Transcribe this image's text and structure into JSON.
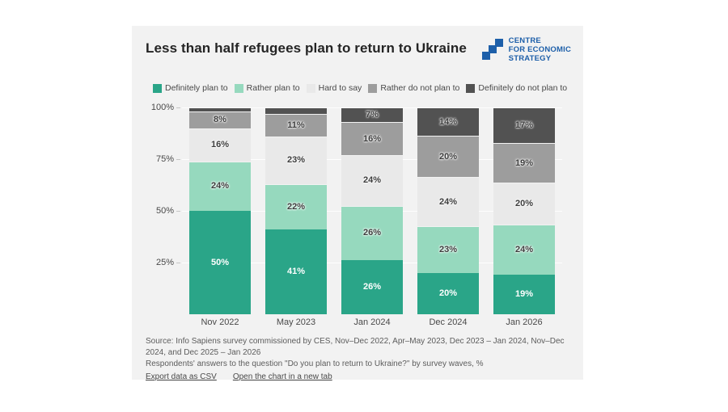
{
  "header": {
    "title": "Less than half refugees plan to return to Ukraine",
    "logo_lines": [
      "Centre",
      "For Economic",
      "Strategy"
    ],
    "logo_color": "#1d5fa9"
  },
  "chart_data": {
    "type": "bar",
    "stacked": true,
    "title": "Less than half refugees plan to return to Ukraine",
    "categories": [
      "Nov 2022",
      "May 2023",
      "Jan 2024",
      "Dec 2024",
      "Jan 2026"
    ],
    "series": [
      {
        "name": "Definitely plan to",
        "color": "#2aa588",
        "label_style": "white",
        "values": [
          50,
          41,
          26,
          20,
          19
        ]
      },
      {
        "name": "Rather plan to",
        "color": "#96d9be",
        "label_style": "dark-halo",
        "values": [
          24,
          22,
          26,
          23,
          24
        ]
      },
      {
        "name": "Hard to say",
        "color": "#e9e9e9",
        "label_style": "dark-halo",
        "values": [
          16,
          23,
          24,
          24,
          20
        ]
      },
      {
        "name": "Rather do not plan to",
        "color": "#9d9d9d",
        "label_style": "dark-halo",
        "values": [
          8,
          11,
          16,
          20,
          19
        ]
      },
      {
        "name": "Definitely do not plan to",
        "color": "#525252",
        "label_style": "dark-halo",
        "values": [
          2,
          3,
          7,
          14,
          17
        ]
      }
    ],
    "label_format": "{value}%",
    "min_label_value": 5,
    "y_ticks": [
      {
        "label": "100%",
        "value": 100
      },
      {
        "label": "75%",
        "value": 75
      },
      {
        "label": "50%",
        "value": 50
      },
      {
        "label": "25%",
        "value": 25
      }
    ],
    "ylim": [
      0,
      100
    ],
    "grid": true,
    "legend_position": "top"
  },
  "footer": {
    "source_text": "Source: Info Sapiens survey commissioned by CES, Nov–Dec 2022, Apr–May 2023, Dec 2023 – Jan 2024, Nov–Dec 2024, and Dec 2025 – Jan 2026",
    "note_text": "Respondents' answers to the question \"Do you plan to return to Ukraine?\" by survey waves, %",
    "links": [
      {
        "label": "Export data as CSV"
      },
      {
        "label": "Open the chart in a new tab"
      }
    ]
  }
}
